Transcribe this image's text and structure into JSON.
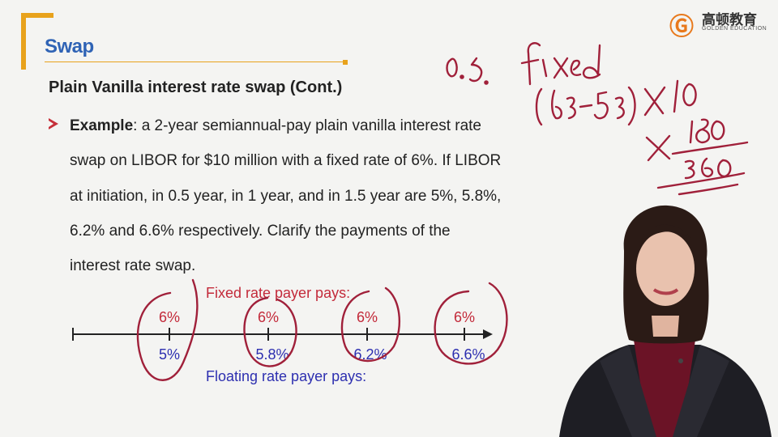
{
  "header": {
    "section_title": "Swap"
  },
  "logo": {
    "cn_text": "高顿教育",
    "en_text": "GOLDEN EDUCATION"
  },
  "slide": {
    "subtitle": "Plain Vanilla interest rate swap (Cont.)",
    "example_label": "Example",
    "lines": [
      ": a 2-year semiannual-pay plain vanilla interest rate",
      "swap on LIBOR for $10 million with a fixed rate of 6%. If LIBOR",
      "at initiation, in 0.5 year, in 1 year, and in 1.5 year are 5%, 5.8%,",
      "6.2% and  6.6% respectively. Clarify the payments of the",
      "interest rate swap."
    ]
  },
  "timeline": {
    "fixed_label": "Fixed rate payer pays:",
    "floating_label": "Floating rate payer pays:",
    "fixed_rates": [
      "6%",
      "6%",
      "6%",
      "6%"
    ],
    "floating_rates": [
      "5%",
      "5.8%",
      "6.2%",
      "6.6%"
    ]
  },
  "colors": {
    "accent": "#e8a21c",
    "title_blue": "#2f63b5",
    "fixed_red": "#c32a3a",
    "floating_blue": "#2d2fb0",
    "ink": "#a0203a"
  }
}
